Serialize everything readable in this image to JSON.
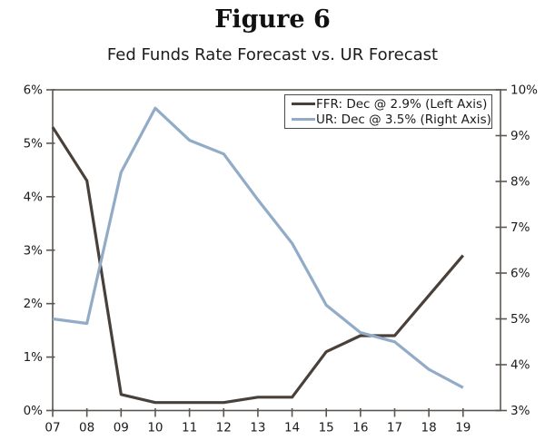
{
  "figure": {
    "label": "Figure 6",
    "title": "Fed Funds Rate Forecast vs. UR Forecast"
  },
  "legend": {
    "items": [
      {
        "label": "FFR: Dec @ 2.9% (Left Axis)",
        "color": "#4a403a"
      },
      {
        "label": "UR: Dec @ 3.5% (Right Axis)",
        "color": "#92abc7"
      }
    ]
  },
  "colors": {
    "ffr_line": "#4a403a",
    "ur_line": "#92abc7",
    "axis": "#5b5651",
    "label_text": "#1b1b1b",
    "background": "#ffffff"
  },
  "chart_data": {
    "type": "line",
    "title": "Fed Funds Rate Forecast vs. UR Forecast",
    "figure_label": "Figure 6",
    "categories": [
      "07",
      "08",
      "09",
      "10",
      "11",
      "12",
      "13",
      "14",
      "15",
      "16",
      "17",
      "18",
      "19"
    ],
    "series": [
      {
        "name": "FFR: Dec @ 2.9% (Left Axis)",
        "axis": "left",
        "color": "#4a403a",
        "values": [
          5.3,
          4.3,
          0.3,
          0.15,
          0.15,
          0.15,
          0.25,
          0.25,
          1.1,
          1.4,
          1.4,
          2.15,
          2.9
        ]
      },
      {
        "name": "UR: Dec @ 3.5% (Right Axis)",
        "axis": "right",
        "color": "#92abc7",
        "values": [
          5.0,
          4.9,
          8.2,
          9.6,
          8.9,
          8.6,
          7.6,
          6.65,
          5.3,
          4.7,
          4.5,
          3.9,
          3.5
        ]
      }
    ],
    "left_axis": {
      "min": 0,
      "max": 6,
      "tick_step": 1,
      "tick_labels": [
        "0%",
        "1%",
        "2%",
        "3%",
        "4%",
        "5%",
        "6%"
      ]
    },
    "right_axis": {
      "min": 3,
      "max": 10,
      "tick_step": 1,
      "tick_labels": [
        "3%",
        "4%",
        "5%",
        "6%",
        "7%",
        "8%",
        "9%",
        "10%"
      ]
    },
    "grid": false,
    "legend_position": "top-right"
  }
}
